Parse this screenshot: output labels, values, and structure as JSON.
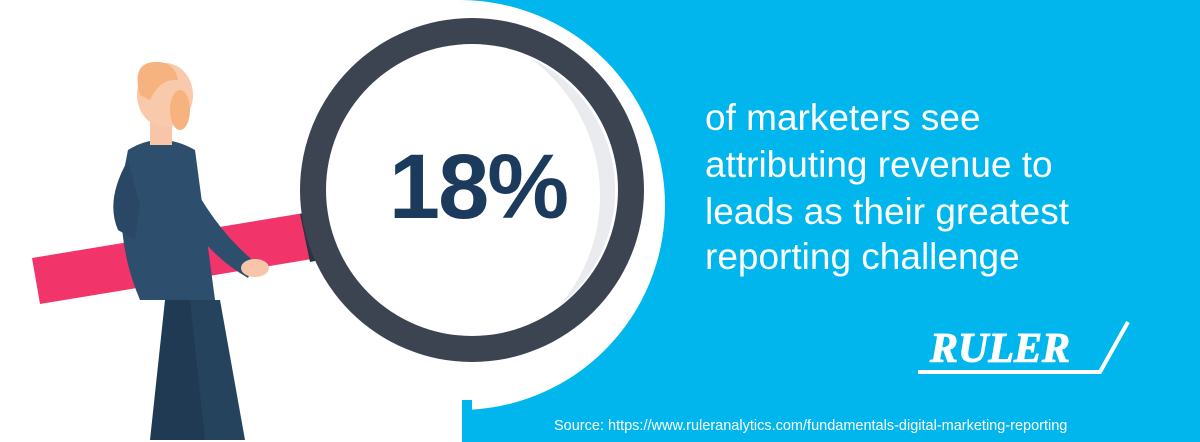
{
  "stat": "18%",
  "statement": [
    "of marketers see",
    "attributing revenue to",
    "leads as their greatest",
    "reporting challenge"
  ],
  "logo": "RULER",
  "source": "Source: https://www.ruleranalytics.com/fundamentals-digital-marketing-reporting"
}
